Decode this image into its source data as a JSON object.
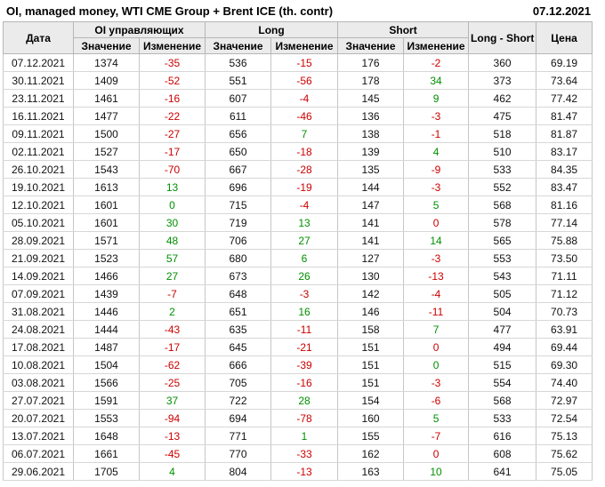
{
  "title": "OI, managed money, WTI CME Group + Brent ICE (th. contr)",
  "report_date": "07.12.2021",
  "colors": {
    "negative": "#cc0000",
    "positive": "#009000",
    "header_bg": "#ebebeb"
  },
  "table": {
    "columns": {
      "date": "Дата",
      "oi_group": "OI управляющих",
      "long_group": "Long",
      "short_group": "Short",
      "value": "Значение",
      "change": "Изменение",
      "long_short": "Long - Short",
      "price": "Цена"
    },
    "cell_names": [
      "date-cell",
      "oi-value-cell",
      "oi-change-cell",
      "long-value-cell",
      "long-change-cell",
      "short-value-cell",
      "short-change-cell",
      "long-short-cell",
      "price-cell"
    ],
    "rows": [
      [
        "07.12.2021",
        "1374",
        {
          "t": "-35",
          "c": "neg"
        },
        "536",
        {
          "t": "-15",
          "c": "neg"
        },
        "176",
        {
          "t": "-2",
          "c": "neg"
        },
        "360",
        "69.19"
      ],
      [
        "30.11.2021",
        "1409",
        {
          "t": "-52",
          "c": "neg"
        },
        "551",
        {
          "t": "-56",
          "c": "neg"
        },
        "178",
        {
          "t": "34",
          "c": "pos"
        },
        "373",
        "73.64"
      ],
      [
        "23.11.2021",
        "1461",
        {
          "t": "-16",
          "c": "neg"
        },
        "607",
        {
          "t": "-4",
          "c": "neg"
        },
        "145",
        {
          "t": "9",
          "c": "pos"
        },
        "462",
        "77.42"
      ],
      [
        "16.11.2021",
        "1477",
        {
          "t": "-22",
          "c": "neg"
        },
        "611",
        {
          "t": "-46",
          "c": "neg"
        },
        "136",
        {
          "t": "-3",
          "c": "neg"
        },
        "475",
        "81.47"
      ],
      [
        "09.11.2021",
        "1500",
        {
          "t": "-27",
          "c": "neg"
        },
        "656",
        {
          "t": "7",
          "c": "pos"
        },
        "138",
        {
          "t": "-1",
          "c": "neg"
        },
        "518",
        "81.87"
      ],
      [
        "02.11.2021",
        "1527",
        {
          "t": "-17",
          "c": "neg"
        },
        "650",
        {
          "t": "-18",
          "c": "neg"
        },
        "139",
        {
          "t": "4",
          "c": "pos"
        },
        "510",
        "83.17"
      ],
      [
        "26.10.2021",
        "1543",
        {
          "t": "-70",
          "c": "neg"
        },
        "667",
        {
          "t": "-28",
          "c": "neg"
        },
        "135",
        {
          "t": "-9",
          "c": "neg"
        },
        "533",
        "84.35"
      ],
      [
        "19.10.2021",
        "1613",
        {
          "t": "13",
          "c": "pos"
        },
        "696",
        {
          "t": "-19",
          "c": "neg"
        },
        "144",
        {
          "t": "-3",
          "c": "neg"
        },
        "552",
        "83.47"
      ],
      [
        "12.10.2021",
        "1601",
        {
          "t": "0",
          "c": "pos"
        },
        "715",
        {
          "t": "-4",
          "c": "neg"
        },
        "147",
        {
          "t": "5",
          "c": "pos"
        },
        "568",
        "81.16"
      ],
      [
        "05.10.2021",
        "1601",
        {
          "t": "30",
          "c": "pos"
        },
        "719",
        {
          "t": "13",
          "c": "pos"
        },
        "141",
        {
          "t": "0",
          "c": "neg"
        },
        "578",
        "77.14"
      ],
      [
        "28.09.2021",
        "1571",
        {
          "t": "48",
          "c": "pos"
        },
        "706",
        {
          "t": "27",
          "c": "pos"
        },
        "141",
        {
          "t": "14",
          "c": "pos"
        },
        "565",
        "75.88"
      ],
      [
        "21.09.2021",
        "1523",
        {
          "t": "57",
          "c": "pos"
        },
        "680",
        {
          "t": "6",
          "c": "pos"
        },
        "127",
        {
          "t": "-3",
          "c": "neg"
        },
        "553",
        "73.50"
      ],
      [
        "14.09.2021",
        "1466",
        {
          "t": "27",
          "c": "pos"
        },
        "673",
        {
          "t": "26",
          "c": "pos"
        },
        "130",
        {
          "t": "-13",
          "c": "neg"
        },
        "543",
        "71.11"
      ],
      [
        "07.09.2021",
        "1439",
        {
          "t": "-7",
          "c": "neg"
        },
        "648",
        {
          "t": "-3",
          "c": "neg"
        },
        "142",
        {
          "t": "-4",
          "c": "neg"
        },
        "505",
        "71.12"
      ],
      [
        "31.08.2021",
        "1446",
        {
          "t": "2",
          "c": "pos"
        },
        "651",
        {
          "t": "16",
          "c": "pos"
        },
        "146",
        {
          "t": "-11",
          "c": "neg"
        },
        "504",
        "70.73"
      ],
      [
        "24.08.2021",
        "1444",
        {
          "t": "-43",
          "c": "neg"
        },
        "635",
        {
          "t": "-11",
          "c": "neg"
        },
        "158",
        {
          "t": "7",
          "c": "pos"
        },
        "477",
        "63.91"
      ],
      [
        "17.08.2021",
        "1487",
        {
          "t": "-17",
          "c": "neg"
        },
        "645",
        {
          "t": "-21",
          "c": "neg"
        },
        "151",
        {
          "t": "0",
          "c": "neg"
        },
        "494",
        "69.44"
      ],
      [
        "10.08.2021",
        "1504",
        {
          "t": "-62",
          "c": "neg"
        },
        "666",
        {
          "t": "-39",
          "c": "neg"
        },
        "151",
        {
          "t": "0",
          "c": "pos"
        },
        "515",
        "69.30"
      ],
      [
        "03.08.2021",
        "1566",
        {
          "t": "-25",
          "c": "neg"
        },
        "705",
        {
          "t": "-16",
          "c": "neg"
        },
        "151",
        {
          "t": "-3",
          "c": "neg"
        },
        "554",
        "74.40"
      ],
      [
        "27.07.2021",
        "1591",
        {
          "t": "37",
          "c": "pos"
        },
        "722",
        {
          "t": "28",
          "c": "pos"
        },
        "154",
        {
          "t": "-6",
          "c": "neg"
        },
        "568",
        "72.97"
      ],
      [
        "20.07.2021",
        "1553",
        {
          "t": "-94",
          "c": "neg"
        },
        "694",
        {
          "t": "-78",
          "c": "neg"
        },
        "160",
        {
          "t": "5",
          "c": "pos"
        },
        "533",
        "72.54"
      ],
      [
        "13.07.2021",
        "1648",
        {
          "t": "-13",
          "c": "neg"
        },
        "771",
        {
          "t": "1",
          "c": "pos"
        },
        "155",
        {
          "t": "-7",
          "c": "neg"
        },
        "616",
        "75.13"
      ],
      [
        "06.07.2021",
        "1661",
        {
          "t": "-45",
          "c": "neg"
        },
        "770",
        {
          "t": "-33",
          "c": "neg"
        },
        "162",
        {
          "t": "0",
          "c": "neg"
        },
        "608",
        "75.62"
      ],
      [
        "29.06.2021",
        "1705",
        {
          "t": "4",
          "c": "pos"
        },
        "804",
        {
          "t": "-13",
          "c": "neg"
        },
        "163",
        {
          "t": "10",
          "c": "pos"
        },
        "641",
        "75.05"
      ]
    ]
  }
}
